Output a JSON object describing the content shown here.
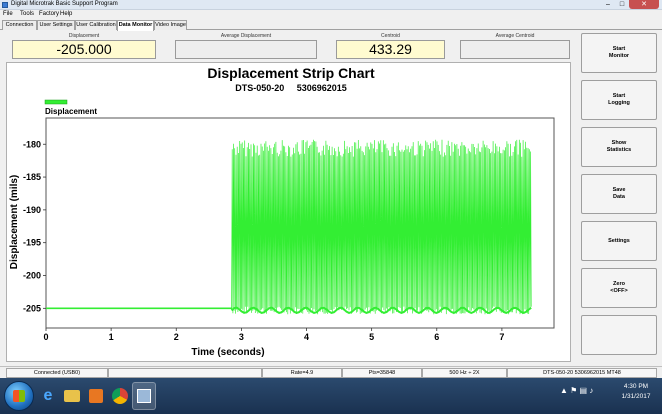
{
  "window": {
    "title": "Digital Microtrak Basic Support Program",
    "controls": {
      "minimize": "–",
      "maximize": "□",
      "close": "✕"
    }
  },
  "menu": [
    "File",
    "Tools",
    "Factory",
    "Help"
  ],
  "tabs": [
    {
      "label": "Connection",
      "active": false
    },
    {
      "label": "User Settings",
      "active": false
    },
    {
      "label": "User Calibration",
      "active": false
    },
    {
      "label": "Data Monitor",
      "active": true
    },
    {
      "label": "Video Image",
      "active": false
    }
  ],
  "readouts": {
    "displacement": {
      "label": "Displacement",
      "value": "-205.000"
    },
    "avg_displacement": {
      "label": "Average Displacement",
      "value": ""
    },
    "centroid": {
      "label": "Centroid",
      "value": "433.29"
    },
    "avg_centroid": {
      "label": "Average Centroid",
      "value": ""
    }
  },
  "sidebar_buttons": [
    {
      "label": "Start\nMonitor"
    },
    {
      "label": "Start\nLogging"
    },
    {
      "label": "Show\nStatistics"
    },
    {
      "label": "Save\nData"
    },
    {
      "label": "Settings"
    },
    {
      "label": "Zero\n<OFF>"
    },
    {
      "label": ""
    }
  ],
  "chart_data": {
    "type": "line",
    "title": "Displacement Strip Chart",
    "subtitle": "DTS-050-20     5306962015",
    "xlabel": "Time (seconds)",
    "ylabel": "Displacement (mils)",
    "xlim": [
      0,
      7.8
    ],
    "ylim": [
      -208,
      -176
    ],
    "xticks": [
      0,
      1,
      2,
      3,
      4,
      5,
      6,
      7
    ],
    "yticks": [
      -180,
      -185,
      -190,
      -195,
      -200,
      -205
    ],
    "grid": true,
    "legend": "top-left",
    "series": [
      {
        "name": "Displacement",
        "color": "#33ee33",
        "baseline_segment": {
          "x": [
            0,
            2.85
          ],
          "value": -205
        },
        "oscillation_segment": {
          "x": [
            2.85,
            7.45
          ],
          "low": -205.5,
          "high": -179.3
        }
      }
    ]
  },
  "status": {
    "connection": "Connected (USB0)",
    "rate": "Rate=4.9",
    "points": "Pts=35848",
    "freq": "500 Hz ÷ 2X",
    "device": "DTS-050-20     5306962015     MT48"
  },
  "taskbar": {
    "icons": [
      "start-orb",
      "ie-icon",
      "folder-icon",
      "media-icon",
      "chrome-icon",
      "program-icon"
    ],
    "tray": "▲  ⚑  ▤  ♪",
    "time": "4:30 PM",
    "date": "1/31/2017"
  }
}
